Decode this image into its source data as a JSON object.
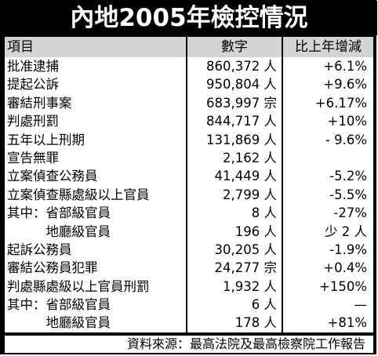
{
  "title": "內地2005年檢控情況",
  "header": {
    "item": "項目",
    "number": "數字",
    "change": "比上年增減"
  },
  "rows": [
    {
      "item": "批准逮捕",
      "number": "860,372 人",
      "change": "+6.1%"
    },
    {
      "item": "提起公訴",
      "number": "950,804 人",
      "change": "+9.6%"
    },
    {
      "item": "審結刑事案",
      "number": "683,997 宗",
      "change": "+6.17%"
    },
    {
      "item": "判處刑罰",
      "number": "844,717 人",
      "change": "+10%"
    },
    {
      "item": "五年以上刑期",
      "number": "131,869 人",
      "change": "- 9.6%"
    },
    {
      "item": "宣告無罪",
      "number": "2,162 人",
      "change": ""
    },
    {
      "item": "立案偵查公務員",
      "number": "41,449 人",
      "change": "-5.2%"
    },
    {
      "item": "立案偵查縣處級以上官員",
      "number": "2,799 人",
      "change": "-5.5%"
    },
    {
      "item": "其中：省部級官員",
      "number": "8 人",
      "change": "-27%"
    },
    {
      "item": "　　　地廳級官員",
      "number": "196 人",
      "change": "少 2 人"
    },
    {
      "item": "起訴公務員",
      "number": "30,205 人",
      "change": "-1.9%"
    },
    {
      "item": "審結公務員犯罪",
      "number": "24,277 宗",
      "change": "+0.4%"
    },
    {
      "item": "判處縣處級以上官員刑罰",
      "number": "1,932 人",
      "change": "+150%"
    },
    {
      "item": "其中：省部級官員",
      "number": "6 人",
      "change": "—"
    },
    {
      "item": "　　　地廳級官員",
      "number": "178 人",
      "change": "+81%"
    }
  ],
  "footer": "資料來源：最高法院及最高檢察院工作報告"
}
